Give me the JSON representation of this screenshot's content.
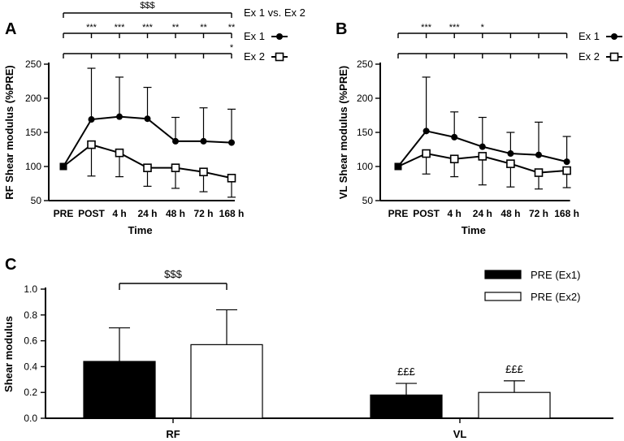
{
  "chart_data": [
    {
      "panel": "A",
      "type": "line",
      "ylabel": "RF Shear modulus (%PRE)",
      "xlabel": "Time",
      "categories": [
        "PRE",
        "POST",
        "4 h",
        "24 h",
        "48 h",
        "72 h",
        "168 h"
      ],
      "ylim": [
        50,
        250
      ],
      "yticks": [
        50,
        100,
        150,
        200,
        250
      ],
      "series": [
        {
          "name": "Ex 1",
          "marker": "filled-circle",
          "values": [
            100,
            169,
            173,
            170,
            137,
            137,
            135
          ],
          "sd": [
            0,
            75,
            58,
            46,
            35,
            49,
            49
          ],
          "err_dir": "up"
        },
        {
          "name": "Ex 2",
          "marker": "open-square",
          "values": [
            100,
            132,
            120,
            98,
            98,
            92,
            83
          ],
          "sd": [
            0,
            46,
            35,
            27,
            30,
            29,
            28
          ],
          "err_dir": "down"
        }
      ],
      "sig_ex1_ex2": "$$$",
      "sig_ex1": [
        "***",
        "***",
        "***",
        "**",
        "**",
        "**"
      ],
      "sig_ex2": [
        "",
        "",
        "",
        "",
        "",
        "*"
      ],
      "legend_ex1": "Ex 1",
      "legend_ex2": "Ex 2",
      "comparison_label": "Ex 1 vs. Ex 2"
    },
    {
      "panel": "B",
      "type": "line",
      "ylabel": "VL Shear modulus (%PRE)",
      "xlabel": "Time",
      "categories": [
        "PRE",
        "POST",
        "4 h",
        "24 h",
        "48 h",
        "72 h",
        "168 h"
      ],
      "ylim": [
        50,
        250
      ],
      "yticks": [
        50,
        100,
        150,
        200,
        250
      ],
      "series": [
        {
          "name": "Ex 1",
          "marker": "filled-circle",
          "values": [
            100,
            152,
            143,
            129,
            119,
            117,
            107
          ],
          "sd": [
            0,
            79,
            37,
            43,
            31,
            48,
            37
          ],
          "err_dir": "up"
        },
        {
          "name": "Ex 2",
          "marker": "open-square",
          "values": [
            100,
            119,
            111,
            115,
            104,
            91,
            94
          ],
          "sd": [
            0,
            30,
            26,
            42,
            34,
            24,
            25
          ],
          "err_dir": "down"
        }
      ],
      "sig_ex1": [
        "***",
        "***",
        "*",
        "",
        "",
        ""
      ],
      "sig_ex2": [
        "",
        "",
        "",
        "",
        "",
        ""
      ],
      "legend_ex1": "Ex 1",
      "legend_ex2": "Ex 2"
    },
    {
      "panel": "C",
      "type": "bar",
      "ylabel": "Shear modulus",
      "categories": [
        "RF",
        "VL"
      ],
      "ylim": [
        0,
        1.0
      ],
      "yticks": [
        "0.0",
        "0.2",
        "0.4",
        "0.6",
        "0.8",
        "1.0"
      ],
      "series": [
        {
          "name": "PRE (Ex1)",
          "fill": "#000000",
          "values": [
            0.44,
            0.18
          ],
          "sd": [
            0.26,
            0.09
          ]
        },
        {
          "name": "PRE (Ex2)",
          "fill": "#ffffff",
          "values": [
            0.57,
            0.2
          ],
          "sd": [
            0.27,
            0.09
          ]
        }
      ],
      "sig_bracket": "$$$",
      "vl_annotation": "£££"
    }
  ]
}
